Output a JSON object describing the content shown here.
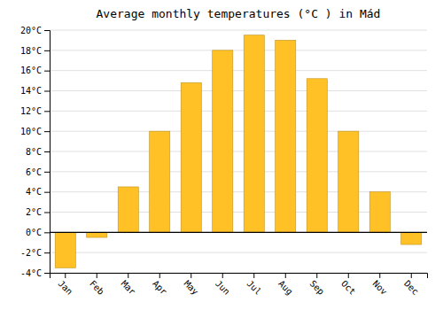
{
  "chart_data": {
    "type": "bar",
    "title": "Average monthly temperatures (°C ) in Mád",
    "categories": [
      "Jan",
      "Feb",
      "Mar",
      "Apr",
      "May",
      "Jun",
      "Jul",
      "Aug",
      "Sep",
      "Oct",
      "Nov",
      "Dec"
    ],
    "values": [
      -3.5,
      -0.5,
      4.5,
      10.0,
      14.8,
      18.0,
      19.5,
      19.0,
      15.2,
      10.0,
      4.0,
      -1.2
    ],
    "color": "#FFC125",
    "ylim": [
      -4,
      20
    ],
    "yticks": [
      {
        "value": -4,
        "label": "-4°C"
      },
      {
        "value": -2,
        "label": "-2°C"
      },
      {
        "value": 0,
        "label": "0°C"
      },
      {
        "value": 2,
        "label": "2°C"
      },
      {
        "value": 4,
        "label": "4°C"
      },
      {
        "value": 6,
        "label": "6°C"
      },
      {
        "value": 8,
        "label": "8°C"
      },
      {
        "value": 10,
        "label": "10°C"
      },
      {
        "value": 12,
        "label": "12°C"
      },
      {
        "value": 14,
        "label": "14°C"
      },
      {
        "value": 16,
        "label": "16°C"
      },
      {
        "value": 18,
        "label": "18°C"
      },
      {
        "value": 20,
        "label": "20°C"
      }
    ],
    "grid": true
  }
}
